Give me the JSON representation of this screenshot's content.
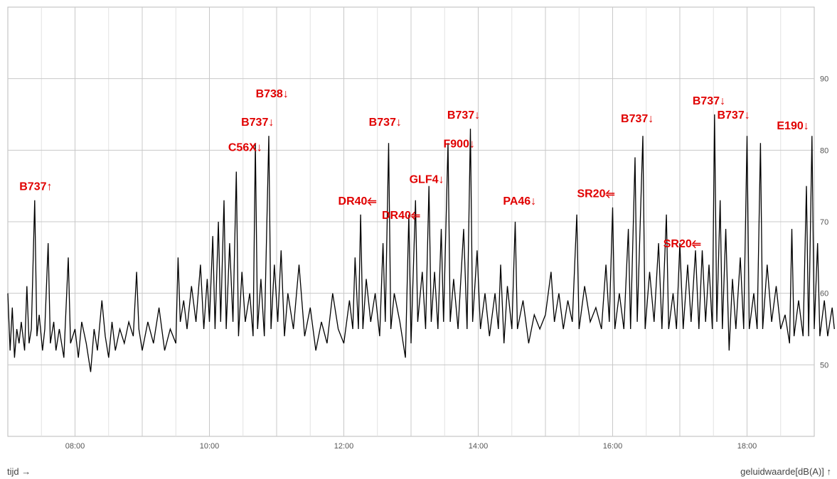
{
  "chart_data": {
    "type": "line",
    "xlabel": "tijd →",
    "ylabel": "geluidwaarde[dB(A)] ↑",
    "xlim": [
      "07:00",
      "19:00"
    ],
    "ylim": [
      40,
      100
    ],
    "x_ticks": [
      "08:00",
      "10:00",
      "12:00",
      "14:00",
      "16:00",
      "18:00"
    ],
    "y_ticks": [
      50,
      60,
      70,
      80,
      90
    ],
    "grid": true,
    "line_color": "#000000",
    "annotation_color": "#e00000",
    "series": [
      {
        "points": [
          [
            "07:00",
            60
          ],
          [
            "07:02",
            52
          ],
          [
            "07:04",
            58
          ],
          [
            "07:06",
            51
          ],
          [
            "07:08",
            55
          ],
          [
            "07:10",
            53
          ],
          [
            "07:12",
            56
          ],
          [
            "07:15",
            52
          ],
          [
            "07:17",
            61
          ],
          [
            "07:19",
            53
          ],
          [
            "07:21",
            55
          ],
          [
            "07:24",
            73
          ],
          [
            "07:26",
            54
          ],
          [
            "07:28",
            57
          ],
          [
            "07:31",
            52
          ],
          [
            "07:33",
            55
          ],
          [
            "07:36",
            67
          ],
          [
            "07:38",
            53
          ],
          [
            "07:41",
            56
          ],
          [
            "07:43",
            52
          ],
          [
            "07:46",
            55
          ],
          [
            "07:50",
            51
          ],
          [
            "07:54",
            65
          ],
          [
            "07:56",
            53
          ],
          [
            "08:00",
            55
          ],
          [
            "08:03",
            51
          ],
          [
            "08:06",
            56
          ],
          [
            "08:10",
            53
          ],
          [
            "08:14",
            49
          ],
          [
            "08:17",
            55
          ],
          [
            "08:20",
            52
          ],
          [
            "08:24",
            59
          ],
          [
            "08:27",
            54
          ],
          [
            "08:30",
            51
          ],
          [
            "08:33",
            56
          ],
          [
            "08:36",
            52
          ],
          [
            "08:40",
            55
          ],
          [
            "08:44",
            53
          ],
          [
            "08:48",
            56
          ],
          [
            "08:52",
            54
          ],
          [
            "08:55",
            63
          ],
          [
            "08:57",
            55
          ],
          [
            "09:00",
            52
          ],
          [
            "09:05",
            56
          ],
          [
            "09:10",
            53
          ],
          [
            "09:15",
            58
          ],
          [
            "09:20",
            52
          ],
          [
            "09:25",
            55
          ],
          [
            "09:30",
            53
          ],
          [
            "09:32",
            65
          ],
          [
            "09:34",
            56
          ],
          [
            "09:37",
            59
          ],
          [
            "09:40",
            55
          ],
          [
            "09:44",
            61
          ],
          [
            "09:48",
            56
          ],
          [
            "09:52",
            64
          ],
          [
            "09:55",
            55
          ],
          [
            "09:58",
            62
          ],
          [
            "10:00",
            56
          ],
          [
            "10:03",
            68
          ],
          [
            "10:05",
            55
          ],
          [
            "10:08",
            70
          ],
          [
            "10:10",
            56
          ],
          [
            "10:13",
            73
          ],
          [
            "10:15",
            55
          ],
          [
            "10:18",
            67
          ],
          [
            "10:21",
            56
          ],
          [
            "10:24",
            77
          ],
          [
            "10:26",
            54
          ],
          [
            "10:29",
            63
          ],
          [
            "10:32",
            56
          ],
          [
            "10:36",
            60
          ],
          [
            "10:39",
            54
          ],
          [
            "10:41",
            81
          ],
          [
            "10:43",
            55
          ],
          [
            "10:46",
            62
          ],
          [
            "10:49",
            54
          ],
          [
            "10:53",
            82
          ],
          [
            "10:55",
            55
          ],
          [
            "10:58",
            64
          ],
          [
            "11:01",
            56
          ],
          [
            "11:04",
            66
          ],
          [
            "11:07",
            54
          ],
          [
            "11:10",
            60
          ],
          [
            "11:15",
            55
          ],
          [
            "11:20",
            64
          ],
          [
            "11:25",
            54
          ],
          [
            "11:30",
            58
          ],
          [
            "11:35",
            52
          ],
          [
            "11:40",
            56
          ],
          [
            "11:45",
            53
          ],
          [
            "11:50",
            60
          ],
          [
            "11:55",
            55
          ],
          [
            "12:00",
            53
          ],
          [
            "12:05",
            59
          ],
          [
            "12:08",
            55
          ],
          [
            "12:10",
            65
          ],
          [
            "12:13",
            55
          ],
          [
            "12:15",
            71
          ],
          [
            "12:17",
            55
          ],
          [
            "12:20",
            62
          ],
          [
            "12:24",
            56
          ],
          [
            "12:28",
            60
          ],
          [
            "12:32",
            54
          ],
          [
            "12:35",
            67
          ],
          [
            "12:37",
            56
          ],
          [
            "12:40",
            81
          ],
          [
            "12:42",
            55
          ],
          [
            "12:45",
            60
          ],
          [
            "12:50",
            56
          ],
          [
            "12:55",
            51
          ],
          [
            "12:58",
            71
          ],
          [
            "13:00",
            53
          ],
          [
            "13:04",
            73
          ],
          [
            "13:06",
            56
          ],
          [
            "13:10",
            63
          ],
          [
            "13:13",
            55
          ],
          [
            "13:16",
            75
          ],
          [
            "13:18",
            56
          ],
          [
            "13:21",
            63
          ],
          [
            "13:24",
            55
          ],
          [
            "13:27",
            69
          ],
          [
            "13:29",
            56
          ],
          [
            "13:33",
            81
          ],
          [
            "13:35",
            56
          ],
          [
            "13:38",
            62
          ],
          [
            "13:42",
            55
          ],
          [
            "13:47",
            69
          ],
          [
            "13:50",
            55
          ],
          [
            "13:53",
            83
          ],
          [
            "13:55",
            56
          ],
          [
            "13:59",
            66
          ],
          [
            "14:02",
            55
          ],
          [
            "14:06",
            60
          ],
          [
            "14:10",
            54
          ],
          [
            "14:15",
            60
          ],
          [
            "14:18",
            55
          ],
          [
            "14:20",
            64
          ],
          [
            "14:23",
            53
          ],
          [
            "14:26",
            61
          ],
          [
            "14:30",
            55
          ],
          [
            "14:33",
            70
          ],
          [
            "14:35",
            55
          ],
          [
            "14:40",
            59
          ],
          [
            "14:45",
            53
          ],
          [
            "14:50",
            57
          ],
          [
            "14:55",
            55
          ],
          [
            "15:00",
            57
          ],
          [
            "15:05",
            63
          ],
          [
            "15:08",
            56
          ],
          [
            "15:12",
            60
          ],
          [
            "15:16",
            55
          ],
          [
            "15:20",
            59
          ],
          [
            "15:24",
            56
          ],
          [
            "15:28",
            71
          ],
          [
            "15:30",
            55
          ],
          [
            "15:35",
            61
          ],
          [
            "15:40",
            56
          ],
          [
            "15:45",
            58
          ],
          [
            "15:50",
            55
          ],
          [
            "15:54",
            64
          ],
          [
            "15:57",
            56
          ],
          [
            "16:00",
            72
          ],
          [
            "16:02",
            55
          ],
          [
            "16:06",
            60
          ],
          [
            "16:10",
            55
          ],
          [
            "16:14",
            69
          ],
          [
            "16:16",
            55
          ],
          [
            "16:20",
            79
          ],
          [
            "16:22",
            56
          ],
          [
            "16:27",
            82
          ],
          [
            "16:29",
            55
          ],
          [
            "16:33",
            63
          ],
          [
            "16:37",
            56
          ],
          [
            "16:41",
            67
          ],
          [
            "16:44",
            55
          ],
          [
            "16:48",
            71
          ],
          [
            "16:50",
            55
          ],
          [
            "16:54",
            60
          ],
          [
            "16:57",
            55
          ],
          [
            "17:00",
            67
          ],
          [
            "17:03",
            55
          ],
          [
            "17:07",
            64
          ],
          [
            "17:10",
            56
          ],
          [
            "17:14",
            66
          ],
          [
            "17:17",
            55
          ],
          [
            "17:20",
            66
          ],
          [
            "17:23",
            56
          ],
          [
            "17:26",
            64
          ],
          [
            "17:29",
            55
          ],
          [
            "17:31",
            85
          ],
          [
            "17:33",
            56
          ],
          [
            "17:36",
            73
          ],
          [
            "17:38",
            55
          ],
          [
            "17:41",
            69
          ],
          [
            "17:44",
            52
          ],
          [
            "17:47",
            62
          ],
          [
            "17:50",
            55
          ],
          [
            "17:54",
            65
          ],
          [
            "17:57",
            55
          ],
          [
            "18:00",
            82
          ],
          [
            "18:02",
            55
          ],
          [
            "18:06",
            60
          ],
          [
            "18:09",
            55
          ],
          [
            "18:12",
            81
          ],
          [
            "18:14",
            55
          ],
          [
            "18:18",
            64
          ],
          [
            "18:22",
            56
          ],
          [
            "18:26",
            61
          ],
          [
            "18:30",
            55
          ],
          [
            "18:34",
            57
          ],
          [
            "18:38",
            53
          ],
          [
            "18:40",
            69
          ],
          [
            "18:42",
            54
          ],
          [
            "18:46",
            59
          ],
          [
            "18:50",
            54
          ],
          [
            "18:53",
            75
          ],
          [
            "18:55",
            54
          ],
          [
            "18:58",
            82
          ],
          [
            "19:00",
            55
          ],
          [
            "19:03",
            67
          ],
          [
            "19:05",
            54
          ],
          [
            "19:09",
            59
          ],
          [
            "19:12",
            54
          ],
          [
            "19:16",
            58
          ],
          [
            "19:18",
            55
          ]
        ]
      }
    ],
    "annotations": [
      {
        "text": "B737↑",
        "x": "07:25",
        "y": 75
      },
      {
        "text": "C56X↓",
        "x": "10:32",
        "y": 80.5
      },
      {
        "text": "B737↓",
        "x": "10:43",
        "y": 84
      },
      {
        "text": "B738↓",
        "x": "10:56",
        "y": 88
      },
      {
        "text": "DR40⥢",
        "x": "12:12",
        "y": 73
      },
      {
        "text": "B737↓",
        "x": "12:37",
        "y": 84
      },
      {
        "text": "DR40⥢",
        "x": "12:51",
        "y": 71
      },
      {
        "text": "GLF4↓",
        "x": "13:14",
        "y": 76
      },
      {
        "text": "F900↓",
        "x": "13:43",
        "y": 81
      },
      {
        "text": "B737↓",
        "x": "13:47",
        "y": 85
      },
      {
        "text": "PA46↓",
        "x": "14:37",
        "y": 73
      },
      {
        "text": "SR20⥢",
        "x": "15:45",
        "y": 74
      },
      {
        "text": "B737↓",
        "x": "16:22",
        "y": 84.5
      },
      {
        "text": "SR20⥢",
        "x": "17:02",
        "y": 67
      },
      {
        "text": "B737↓",
        "x": "17:26",
        "y": 87
      },
      {
        "text": "B737↓",
        "x": "17:48",
        "y": 85
      },
      {
        "text": "E190↓",
        "x": "18:41",
        "y": 83.5
      }
    ]
  }
}
